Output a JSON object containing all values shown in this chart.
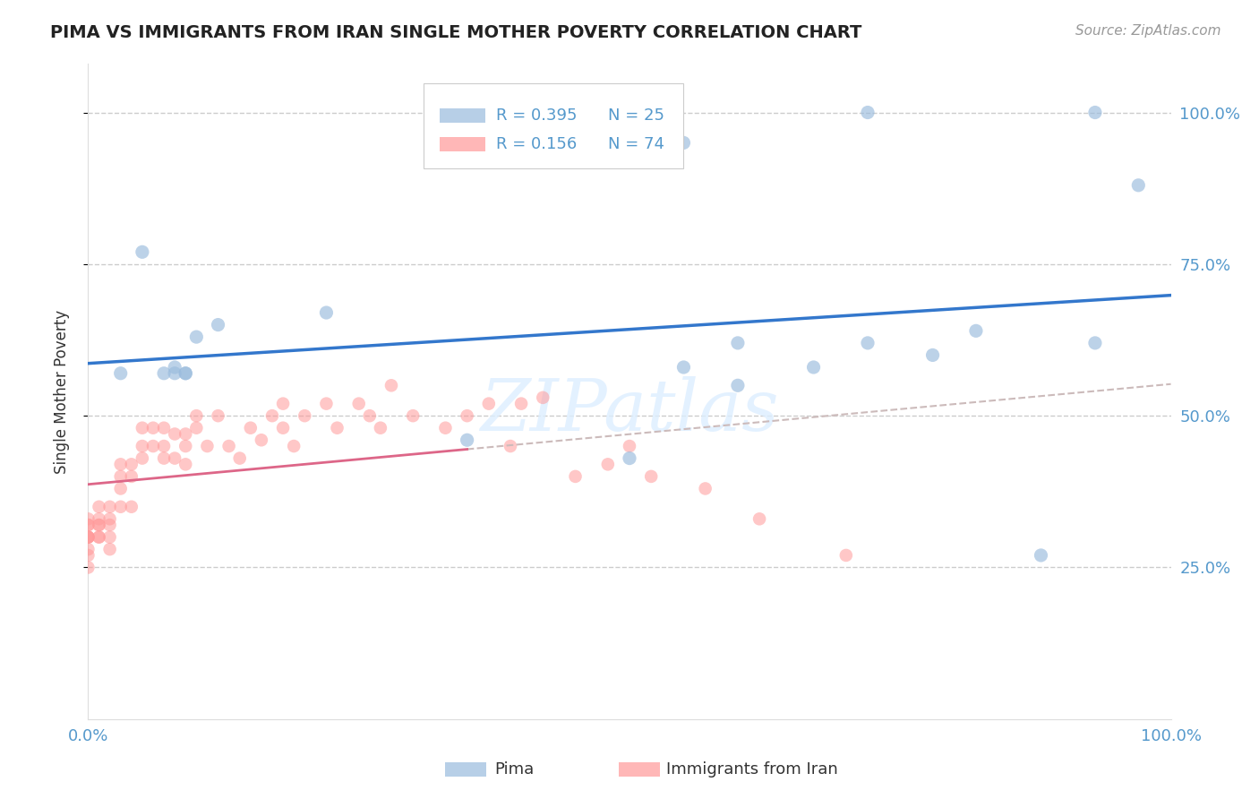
{
  "title": "PIMA VS IMMIGRANTS FROM IRAN SINGLE MOTHER POVERTY CORRELATION CHART",
  "source": "Source: ZipAtlas.com",
  "ylabel": "Single Mother Poverty",
  "legend_r_blue": "R = 0.395",
  "legend_n_blue": "N = 25",
  "legend_r_pink": "R = 0.156",
  "legend_n_pink": "N = 74",
  "blue_dot_color": "#99BBDD",
  "pink_dot_color": "#FF9999",
  "trend_blue_color": "#3377CC",
  "trend_pink_color": "#DD6688",
  "dashed_gray_color": "#CCBBBB",
  "axis_tick_color": "#5599CC",
  "title_color": "#222222",
  "source_color": "#999999",
  "ylabel_color": "#333333",
  "grid_color": "#CCCCCC",
  "watermark_color": "#DDEEFF",
  "legend_text_color": "#5599CC",
  "background": "#FFFFFF",
  "pima_x": [
    0.03,
    0.05,
    0.07,
    0.08,
    0.08,
    0.09,
    0.09,
    0.1,
    0.12,
    0.22,
    0.35,
    0.5,
    0.55,
    0.6,
    0.67,
    0.72,
    0.78,
    0.82,
    0.88,
    0.93,
    0.93,
    0.97,
    0.6,
    0.72,
    0.55
  ],
  "pima_y": [
    0.57,
    0.77,
    0.57,
    0.57,
    0.58,
    0.57,
    0.57,
    0.63,
    0.65,
    0.67,
    0.46,
    0.43,
    0.58,
    0.62,
    0.58,
    0.62,
    0.6,
    0.64,
    0.27,
    0.62,
    1.0,
    0.88,
    0.55,
    1.0,
    0.95
  ],
  "iran_x": [
    0.0,
    0.0,
    0.0,
    0.0,
    0.0,
    0.0,
    0.0,
    0.0,
    0.0,
    0.0,
    0.01,
    0.01,
    0.01,
    0.01,
    0.01,
    0.01,
    0.02,
    0.02,
    0.02,
    0.02,
    0.02,
    0.03,
    0.03,
    0.03,
    0.03,
    0.04,
    0.04,
    0.04,
    0.05,
    0.05,
    0.05,
    0.06,
    0.06,
    0.07,
    0.07,
    0.07,
    0.08,
    0.08,
    0.09,
    0.09,
    0.09,
    0.1,
    0.1,
    0.11,
    0.12,
    0.13,
    0.14,
    0.15,
    0.16,
    0.17,
    0.18,
    0.18,
    0.19,
    0.2,
    0.22,
    0.23,
    0.25,
    0.26,
    0.27,
    0.28,
    0.3,
    0.33,
    0.35,
    0.37,
    0.39,
    0.4,
    0.42,
    0.45,
    0.48,
    0.5,
    0.52,
    0.57,
    0.62,
    0.7
  ],
  "iran_y": [
    0.32,
    0.3,
    0.28,
    0.33,
    0.3,
    0.27,
    0.25,
    0.3,
    0.32,
    0.3,
    0.32,
    0.35,
    0.3,
    0.33,
    0.3,
    0.32,
    0.35,
    0.33,
    0.3,
    0.28,
    0.32,
    0.4,
    0.38,
    0.42,
    0.35,
    0.35,
    0.4,
    0.42,
    0.45,
    0.48,
    0.43,
    0.45,
    0.48,
    0.43,
    0.48,
    0.45,
    0.43,
    0.47,
    0.45,
    0.42,
    0.47,
    0.48,
    0.5,
    0.45,
    0.5,
    0.45,
    0.43,
    0.48,
    0.46,
    0.5,
    0.52,
    0.48,
    0.45,
    0.5,
    0.52,
    0.48,
    0.52,
    0.5,
    0.48,
    0.55,
    0.5,
    0.48,
    0.5,
    0.52,
    0.45,
    0.52,
    0.53,
    0.4,
    0.42,
    0.45,
    0.4,
    0.38,
    0.33,
    0.27
  ],
  "xlim": [
    0.0,
    1.0
  ],
  "ylim": [
    0.0,
    1.08
  ]
}
